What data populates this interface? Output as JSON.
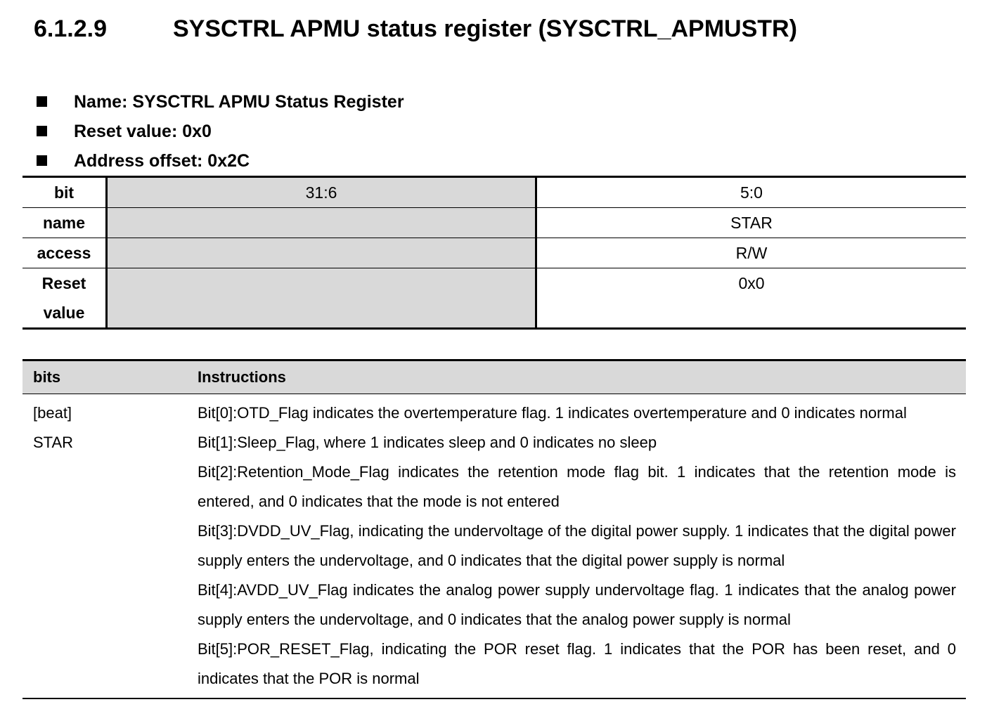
{
  "heading": {
    "number": "6.1.2.9",
    "title": "SYSCTRL APMU status register (SYSCTRL_APMUSTR)"
  },
  "props": [
    "Name: SYSCTRL APMU Status Register",
    "Reset value: 0x0",
    "Address offset: 0x2C"
  ],
  "reg": {
    "labels": [
      "bit",
      "name",
      "access",
      "Reset value"
    ],
    "bits": [
      "31:6",
      "5:0"
    ],
    "name": "STAR",
    "access": "R/W",
    "reset": "0x0"
  },
  "desc": {
    "headers": [
      "bits",
      "Instructions"
    ],
    "bits_cell": [
      "[beat]",
      "STAR"
    ],
    "lines": [
      "Bit[0]:OTD_Flag indicates the overtemperature flag. 1 indicates overtemperature and 0 indicates normal",
      "Bit[1]:Sleep_Flag, where 1 indicates sleep and 0 indicates no sleep",
      "Bit[2]:Retention_Mode_Flag indicates the retention mode flag bit. 1 indicates that the retention mode is entered, and 0 indicates that the mode is not entered",
      "Bit[3]:DVDD_UV_Flag, indicating the undervoltage of the digital power supply. 1 indicates that the digital power supply enters the undervoltage, and 0 indicates that the digital power supply is normal",
      "Bit[4]:AVDD_UV_Flag indicates the analog power supply undervoltage flag. 1 indicates that the analog power supply enters the undervoltage, and 0 indicates that the analog power supply is normal",
      "Bit[5]:POR_RESET_Flag, indicating the POR reset flag. 1 indicates that the POR has been reset, and 0 indicates that the POR is normal"
    ]
  }
}
